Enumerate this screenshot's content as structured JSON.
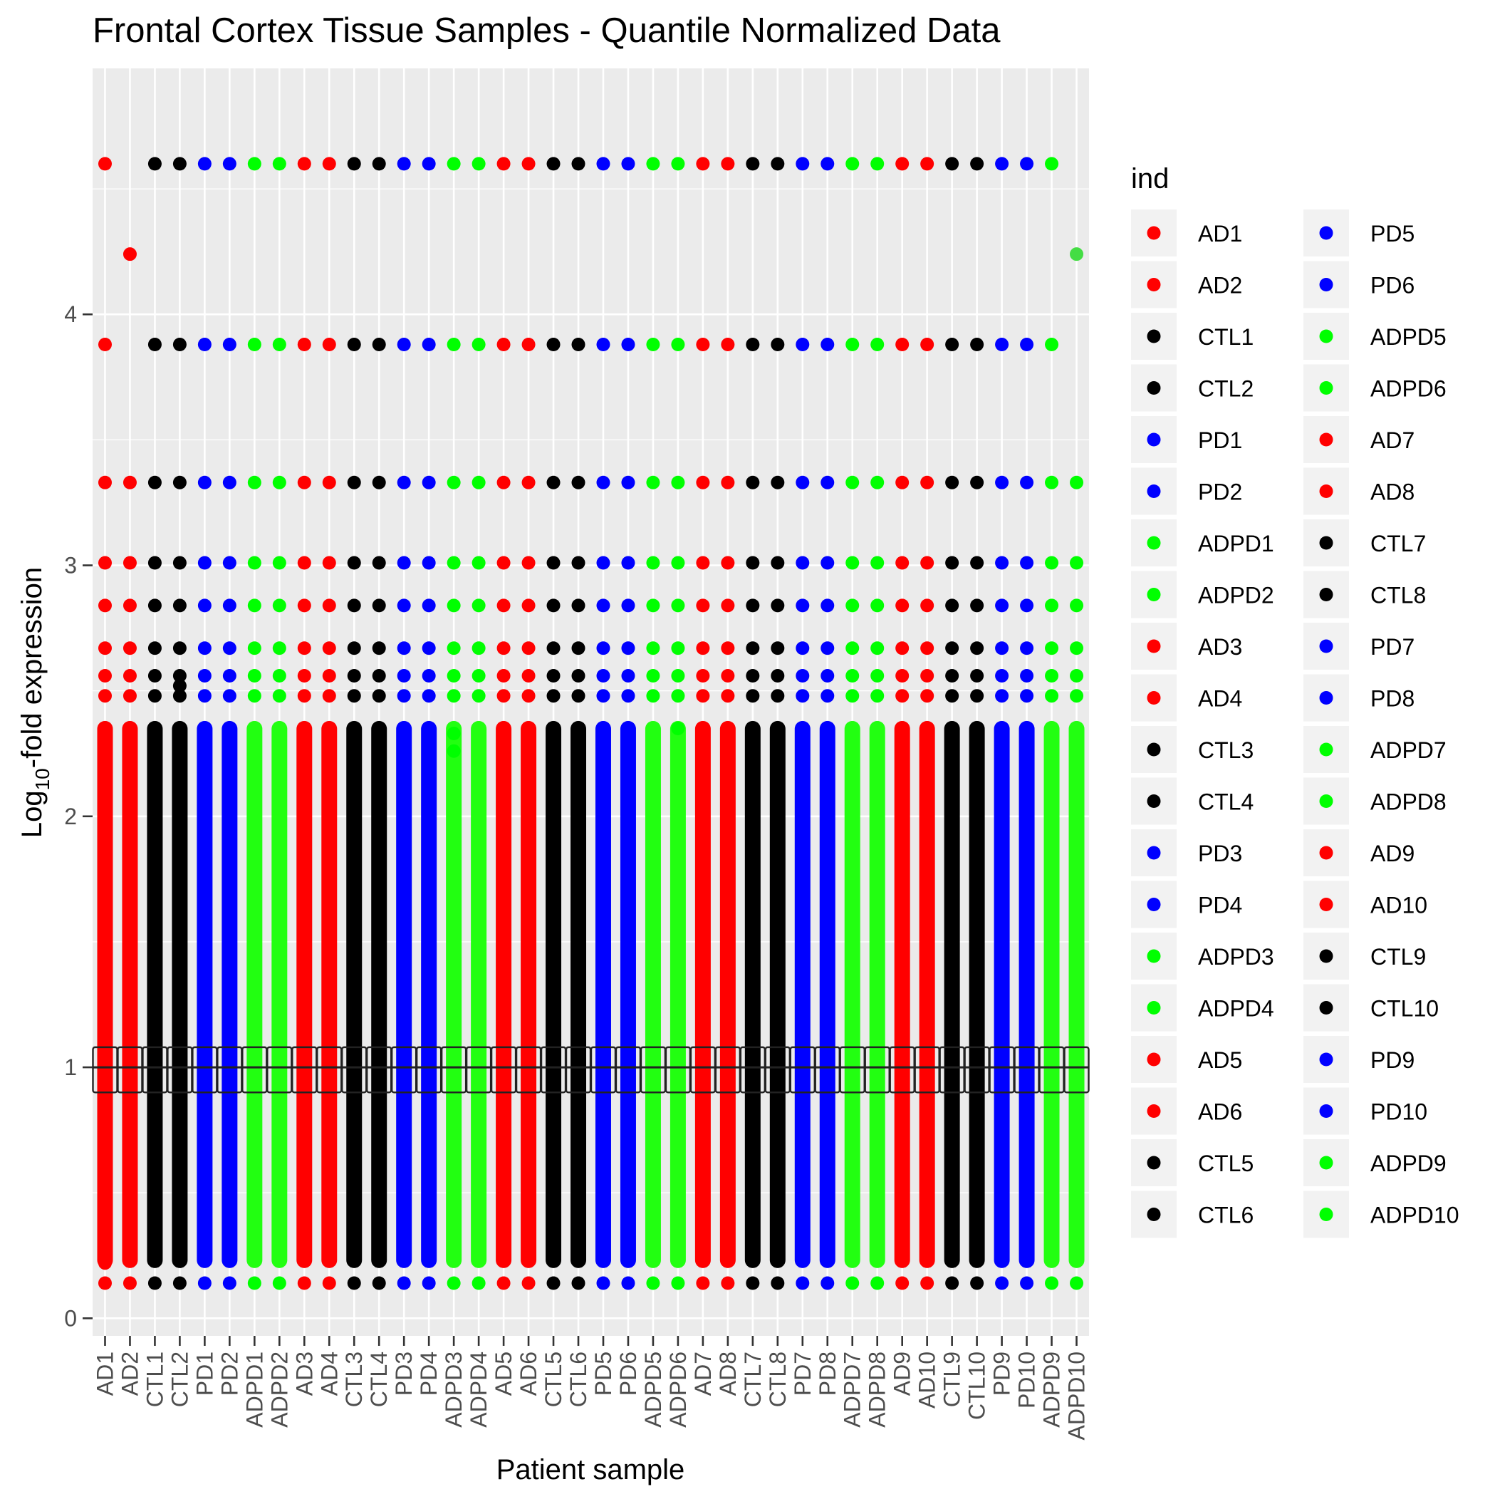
{
  "chart_data": {
    "type": "scatter",
    "title": "Frontal Cortex Tissue Samples - Quantile Normalized Data",
    "xlabel": "Patient sample",
    "ylabel": {
      "prefix": "Log",
      "subscript": "10",
      "suffix": "-fold expression"
    },
    "ylim": [
      -0.07,
      4.98
    ],
    "yticks": [
      "0",
      "1",
      "2",
      "3",
      "4"
    ],
    "grid": true,
    "legend": {
      "title": "ind",
      "position": "right",
      "columns": 2
    },
    "colors": {
      "AD": "#ff0000",
      "CTL": "#000000",
      "PD": "#0000ff",
      "ADPD": "#00ff00",
      "ADPD_band": "#22ff11",
      "box": "#222222"
    },
    "categories": [
      "AD1",
      "AD2",
      "CTL1",
      "CTL2",
      "PD1",
      "PD2",
      "ADPD1",
      "ADPD2",
      "AD3",
      "AD4",
      "CTL3",
      "CTL4",
      "PD3",
      "PD4",
      "ADPD3",
      "ADPD4",
      "AD5",
      "AD6",
      "CTL5",
      "CTL6",
      "PD5",
      "PD6",
      "ADPD5",
      "ADPD6",
      "AD7",
      "AD8",
      "CTL7",
      "CTL8",
      "PD7",
      "PD8",
      "ADPD7",
      "ADPD8",
      "AD9",
      "AD10",
      "CTL9",
      "CTL10",
      "PD9",
      "PD10",
      "ADPD9",
      "ADPD10"
    ],
    "groups": [
      "AD",
      "AD",
      "CTL",
      "CTL",
      "PD",
      "PD",
      "ADPD",
      "ADPD",
      "AD",
      "AD",
      "CTL",
      "CTL",
      "PD",
      "PD",
      "ADPD",
      "ADPD",
      "AD",
      "AD",
      "CTL",
      "CTL",
      "PD",
      "PD",
      "ADPD",
      "ADPD",
      "AD",
      "AD",
      "CTL",
      "CTL",
      "PD",
      "PD",
      "ADPD",
      "ADPD",
      "AD",
      "AD",
      "CTL",
      "CTL",
      "PD",
      "PD",
      "ADPD",
      "ADPD"
    ],
    "box": {
      "q1": 0.9,
      "median": 1.0,
      "q3": 1.08
    },
    "dense_range": [
      0.2,
      2.38
    ],
    "common_outliers": [
      0.14,
      2.48,
      2.56,
      2.67,
      2.84,
      3.01,
      3.33,
      3.88,
      4.6
    ],
    "special_outliers": [
      {
        "category": "AD1",
        "values": [
          0.14,
          0.22,
          2.48,
          2.56,
          2.67,
          2.84,
          3.01,
          3.33,
          3.88,
          4.6
        ]
      },
      {
        "category": "AD2",
        "values": [
          0.14,
          2.48,
          2.56,
          2.67,
          2.84,
          3.01,
          3.33,
          4.24
        ]
      },
      {
        "category": "CTL2",
        "values": [
          2.52
        ]
      },
      {
        "category": "PD4",
        "values": [
          2.12,
          2.16,
          2.21
        ]
      },
      {
        "category": "ADPD3",
        "values": [
          2.26,
          2.33
        ]
      },
      {
        "category": "ADPD6",
        "values": [
          2.35
        ]
      },
      {
        "category": "CTL7",
        "values": [
          2.14,
          2.22,
          2.29
        ]
      },
      {
        "category": "ADPD9",
        "values": [
          0.14,
          2.48,
          2.56,
          2.67,
          2.84,
          3.01,
          3.33,
          3.88,
          4.6
        ]
      },
      {
        "category": "ADPD10",
        "values": [
          0.14,
          2.48,
          2.56,
          2.67,
          2.84,
          3.01,
          3.33,
          4.24
        ]
      }
    ]
  }
}
